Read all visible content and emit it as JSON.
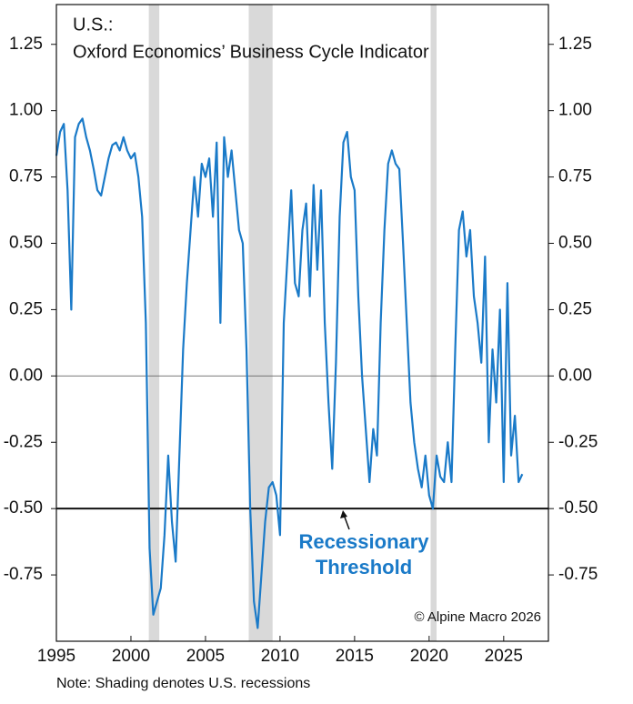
{
  "chart_data": {
    "type": "line",
    "title": [
      "U.S.:",
      "Oxford Economics’ Business Cycle Indicator"
    ],
    "note": "Note: Shading denotes U.S. recessions",
    "credit": "© Alpine Macro 2026",
    "annotation": [
      "Recessionary",
      "Threshold"
    ],
    "threshold": -0.5,
    "recessions": [
      [
        2001.2,
        2001.9
      ],
      [
        2007.9,
        2009.5
      ],
      [
        2020.1,
        2020.5
      ]
    ],
    "xlim": [
      1995,
      2028
    ],
    "xticks": [
      1995,
      2000,
      2005,
      2010,
      2015,
      2020,
      2025
    ],
    "ylim": [
      -1.0,
      1.4
    ],
    "yticks": [
      {
        "value": 1.25,
        "label": "1.25"
      },
      {
        "value": 1,
        "label": "1.00"
      },
      {
        "value": 0.75,
        "label": "0.75"
      },
      {
        "value": 0.5,
        "label": "0.50"
      },
      {
        "value": 0.25,
        "label": "0.25"
      },
      {
        "value": 0,
        "label": "0.00"
      },
      {
        "value": -0.25,
        "label": "-0.25"
      },
      {
        "value": -0.5,
        "label": "-0.50"
      },
      {
        "value": -0.75,
        "label": "-0.75"
      }
    ],
    "y2lim": [
      -1.0,
      1.4
    ],
    "y2ticks": [
      {
        "value": 1.25,
        "label": "1.25"
      },
      {
        "value": 1,
        "label": "1.00"
      },
      {
        "value": 0.75,
        "label": "0.75"
      },
      {
        "value": 0.5,
        "label": "0.50"
      },
      {
        "value": 0.25,
        "label": "0.25"
      },
      {
        "value": 0,
        "label": "0.00"
      },
      {
        "value": -0.25,
        "label": "-0.25"
      },
      {
        "value": -0.5,
        "label": "-0.50"
      },
      {
        "value": -0.75,
        "label": "-0.75"
      }
    ],
    "x": [
      1995,
      1995.25,
      1995.5,
      1995.75,
      1996,
      1996.25,
      1996.5,
      1996.75,
      1997,
      1997.25,
      1997.5,
      1997.75,
      1998,
      1998.25,
      1998.5,
      1998.75,
      1999,
      1999.25,
      1999.5,
      1999.75,
      2000,
      2000.25,
      2000.5,
      2000.75,
      2001,
      2001.25,
      2001.5,
      2001.75,
      2002,
      2002.25,
      2002.5,
      2002.75,
      2003,
      2003.25,
      2003.5,
      2003.75,
      2004,
      2004.25,
      2004.5,
      2004.75,
      2005,
      2005.25,
      2005.5,
      2005.75,
      2006,
      2006.25,
      2006.5,
      2006.75,
      2007,
      2007.25,
      2007.5,
      2007.75,
      2008,
      2008.25,
      2008.5,
      2008.75,
      2009,
      2009.25,
      2009.5,
      2009.75,
      2010,
      2010.25,
      2010.5,
      2010.75,
      2011,
      2011.25,
      2011.5,
      2011.75,
      2012,
      2012.25,
      2012.5,
      2012.75,
      2013,
      2013.25,
      2013.5,
      2013.75,
      2014,
      2014.25,
      2014.5,
      2014.75,
      2015,
      2015.25,
      2015.5,
      2015.75,
      2016,
      2016.25,
      2016.5,
      2016.75,
      2017,
      2017.25,
      2017.5,
      2017.75,
      2018,
      2018.25,
      2018.5,
      2018.75,
      2019,
      2019.25,
      2019.5,
      2019.75,
      2020,
      2020.25,
      2020.5,
      2020.75,
      2021,
      2021.25,
      2021.5,
      2021.75,
      2022,
      2022.25,
      2022.5,
      2022.75,
      2023,
      2023.25,
      2023.5,
      2023.75,
      2024,
      2024.25,
      2024.5,
      2024.75,
      2025,
      2025.25,
      2025.5,
      2025.75,
      2026,
      2026.25
    ],
    "series": [
      {
        "name": "Business Cycle Indicator",
        "color": "#1a7ac8",
        "values": [
          0.83,
          0.92,
          0.95,
          0.7,
          0.25,
          0.9,
          0.95,
          0.97,
          0.9,
          0.85,
          0.78,
          0.7,
          0.68,
          0.75,
          0.82,
          0.87,
          0.88,
          0.85,
          0.9,
          0.85,
          0.82,
          0.84,
          0.75,
          0.6,
          0.2,
          -0.65,
          -0.9,
          -0.85,
          -0.8,
          -0.6,
          -0.3,
          -0.55,
          -0.7,
          -0.3,
          0.1,
          0.35,
          0.55,
          0.75,
          0.6,
          0.8,
          0.75,
          0.82,
          0.6,
          0.88,
          0.2,
          0.9,
          0.75,
          0.85,
          0.7,
          0.55,
          0.5,
          0.1,
          -0.5,
          -0.85,
          -0.95,
          -0.75,
          -0.55,
          -0.42,
          -0.4,
          -0.45,
          -0.6,
          0.2,
          0.45,
          0.7,
          0.35,
          0.3,
          0.55,
          0.65,
          0.3,
          0.72,
          0.4,
          0.7,
          0.2,
          -0.1,
          -0.35,
          0.05,
          0.6,
          0.88,
          0.92,
          0.75,
          0.7,
          0.3,
          0.0,
          -0.2,
          -0.4,
          -0.2,
          -0.3,
          0.2,
          0.55,
          0.8,
          0.85,
          0.8,
          0.78,
          0.5,
          0.2,
          -0.1,
          -0.25,
          -0.35,
          -0.42,
          -0.3,
          -0.45,
          -0.5,
          -0.3,
          -0.38,
          -0.4,
          -0.25,
          -0.4,
          0.1,
          0.55,
          0.62,
          0.45,
          0.55,
          0.3,
          0.2,
          0.05,
          0.45,
          -0.25,
          0.1,
          -0.1,
          0.25,
          -0.4,
          0.35,
          -0.3,
          -0.15,
          -0.4,
          -0.37
        ]
      }
    ]
  }
}
